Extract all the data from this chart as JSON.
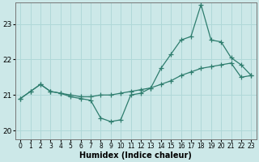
{
  "x": [
    0,
    1,
    2,
    3,
    4,
    5,
    6,
    7,
    8,
    9,
    10,
    11,
    12,
    13,
    14,
    15,
    16,
    17,
    18,
    19,
    20,
    21,
    22,
    23
  ],
  "line_spiky": [
    20.9,
    21.1,
    21.3,
    21.1,
    21.05,
    20.95,
    20.9,
    20.85,
    20.35,
    20.25,
    20.3,
    21.0,
    21.05,
    21.2,
    21.75,
    22.15,
    22.55,
    22.65,
    23.55,
    22.55,
    22.5,
    22.05,
    21.85,
    21.55
  ],
  "line_smooth": [
    20.9,
    21.1,
    21.3,
    21.1,
    21.05,
    21.0,
    20.95,
    20.95,
    21.0,
    21.0,
    21.05,
    21.1,
    21.15,
    21.2,
    21.3,
    21.4,
    21.55,
    21.65,
    21.75,
    21.8,
    21.85,
    21.9,
    21.5,
    21.55
  ],
  "line_color": "#2e7d6e",
  "bg_color": "#cce8e8",
  "grid_color": "#b0d8d8",
  "xlabel": "Humidex (Indice chaleur)",
  "ylim": [
    19.75,
    23.6
  ],
  "yticks": [
    20,
    21,
    22,
    23
  ],
  "xticks": [
    0,
    1,
    2,
    3,
    4,
    5,
    6,
    7,
    8,
    9,
    10,
    11,
    12,
    13,
    14,
    15,
    16,
    17,
    18,
    19,
    20,
    21,
    22,
    23
  ],
  "figsize": [
    3.2,
    2.0
  ],
  "dpi": 100
}
